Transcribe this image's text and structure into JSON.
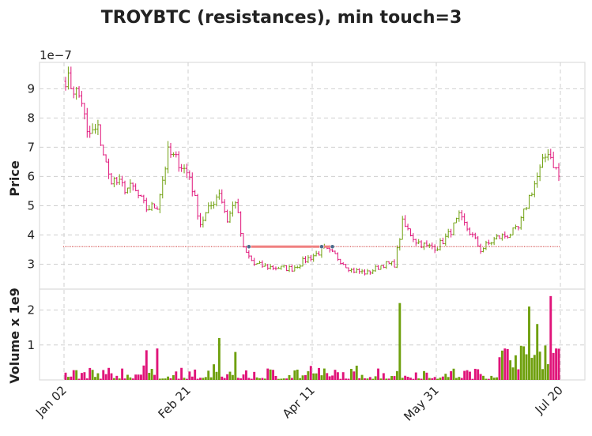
{
  "chart_data": {
    "type": "candlestick",
    "title": "TROYBTC (resistances), min touch=3",
    "price_axis": {
      "ylabel": "Price",
      "exponent_label": "1e−7",
      "ticks": [
        "3",
        "4",
        "5",
        "6",
        "7",
        "8",
        "9"
      ],
      "ylim": [
        2.15,
        9.9
      ],
      "grid": true
    },
    "volume_axis": {
      "ylabel": "Volume x 1e9",
      "ticks": [
        "1",
        "2"
      ],
      "ylim": [
        0,
        2.6
      ],
      "grid": true
    },
    "x_ticks": [
      "Jan 02",
      "Feb 21",
      "Apr 11",
      "May 31",
      "Jul 20"
    ],
    "colors": {
      "up": "#6fa00e",
      "down": "#e0147a",
      "resistance_line": "#f08080",
      "touch_point": "#4a6a8a",
      "level_line": "#cc3333"
    },
    "resistance": {
      "level": 3.6,
      "touch_days": [
        68,
        95,
        99
      ]
    },
    "ohlc_keypoints": [
      [
        0,
        9.4
      ],
      [
        6,
        8.6
      ],
      [
        8,
        7.4
      ],
      [
        12,
        7.6
      ],
      [
        16,
        6.0
      ],
      [
        22,
        5.6
      ],
      [
        25,
        5.6
      ],
      [
        30,
        4.9
      ],
      [
        34,
        5.0
      ],
      [
        38,
        6.8
      ],
      [
        42,
        6.5
      ],
      [
        46,
        6.0
      ],
      [
        50,
        4.4
      ],
      [
        54,
        5.0
      ],
      [
        57,
        5.5
      ],
      [
        60,
        4.5
      ],
      [
        63,
        5.2
      ],
      [
        66,
        3.5
      ],
      [
        70,
        3.0
      ],
      [
        76,
        2.9
      ],
      [
        84,
        2.85
      ],
      [
        90,
        3.2
      ],
      [
        96,
        3.5
      ],
      [
        100,
        3.3
      ],
      [
        106,
        2.8
      ],
      [
        112,
        2.7
      ],
      [
        118,
        3.0
      ],
      [
        122,
        3.0
      ],
      [
        125,
        4.4
      ],
      [
        130,
        3.8
      ],
      [
        134,
        3.6
      ],
      [
        138,
        3.6
      ],
      [
        142,
        4.0
      ],
      [
        146,
        4.6
      ],
      [
        150,
        4.1
      ],
      [
        154,
        3.5
      ],
      [
        160,
        3.9
      ],
      [
        164,
        4.0
      ],
      [
        168,
        4.2
      ],
      [
        172,
        5.3
      ],
      [
        176,
        6.2
      ],
      [
        179,
        6.9
      ],
      [
        183,
        6.0
      ]
    ],
    "volume_spikes": [
      [
        30,
        0.85
      ],
      [
        34,
        0.9
      ],
      [
        57,
        1.2
      ],
      [
        63,
        0.8
      ],
      [
        91,
        0.4
      ],
      [
        124,
        2.2
      ],
      [
        161,
        0.65
      ],
      [
        172,
        2.1
      ],
      [
        175,
        1.6
      ],
      [
        180,
        2.4
      ],
      [
        182,
        0.9
      ]
    ],
    "days": 184
  }
}
